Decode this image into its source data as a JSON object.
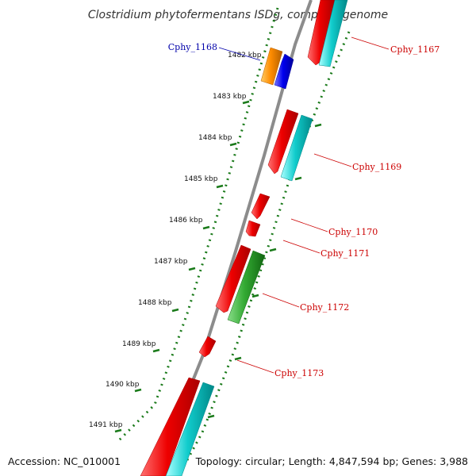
{
  "title": "Clostridium phytofermentans ISDg, complete genome",
  "footer": {
    "accession": "Accession: NC_010001",
    "summary": "Topology: circular; Length: 4,847,594 bp; Genes: 3,988"
  },
  "colors": {
    "backbone": "#8c8c8c",
    "tick": "#1a7a1a",
    "forward_label": "#cc0000",
    "reverse_label": "#0000aa",
    "cds_red": "#ee0000",
    "cds_cyan": "#11cccc",
    "cds_orange": "#ff8c00",
    "cds_blue": "#0000ee",
    "cds_green": "#33aa33"
  },
  "scale_labels": [
    "1482 kbp",
    "1483 kbp",
    "1484 kbp",
    "1485 kbp",
    "1486 kbp",
    "1487 kbp",
    "1488 kbp",
    "1489 kbp",
    "1490 kbp",
    "1491 kbp"
  ],
  "gene_labels": [
    {
      "name": "Cphy_1167",
      "strand": "forward"
    },
    {
      "name": "Cphy_1168",
      "strand": "reverse"
    },
    {
      "name": "Cphy_1169",
      "strand": "forward"
    },
    {
      "name": "Cphy_1170",
      "strand": "forward"
    },
    {
      "name": "Cphy_1171",
      "strand": "forward"
    },
    {
      "name": "Cphy_1172",
      "strand": "forward"
    },
    {
      "name": "Cphy_1173",
      "strand": "forward"
    }
  ]
}
